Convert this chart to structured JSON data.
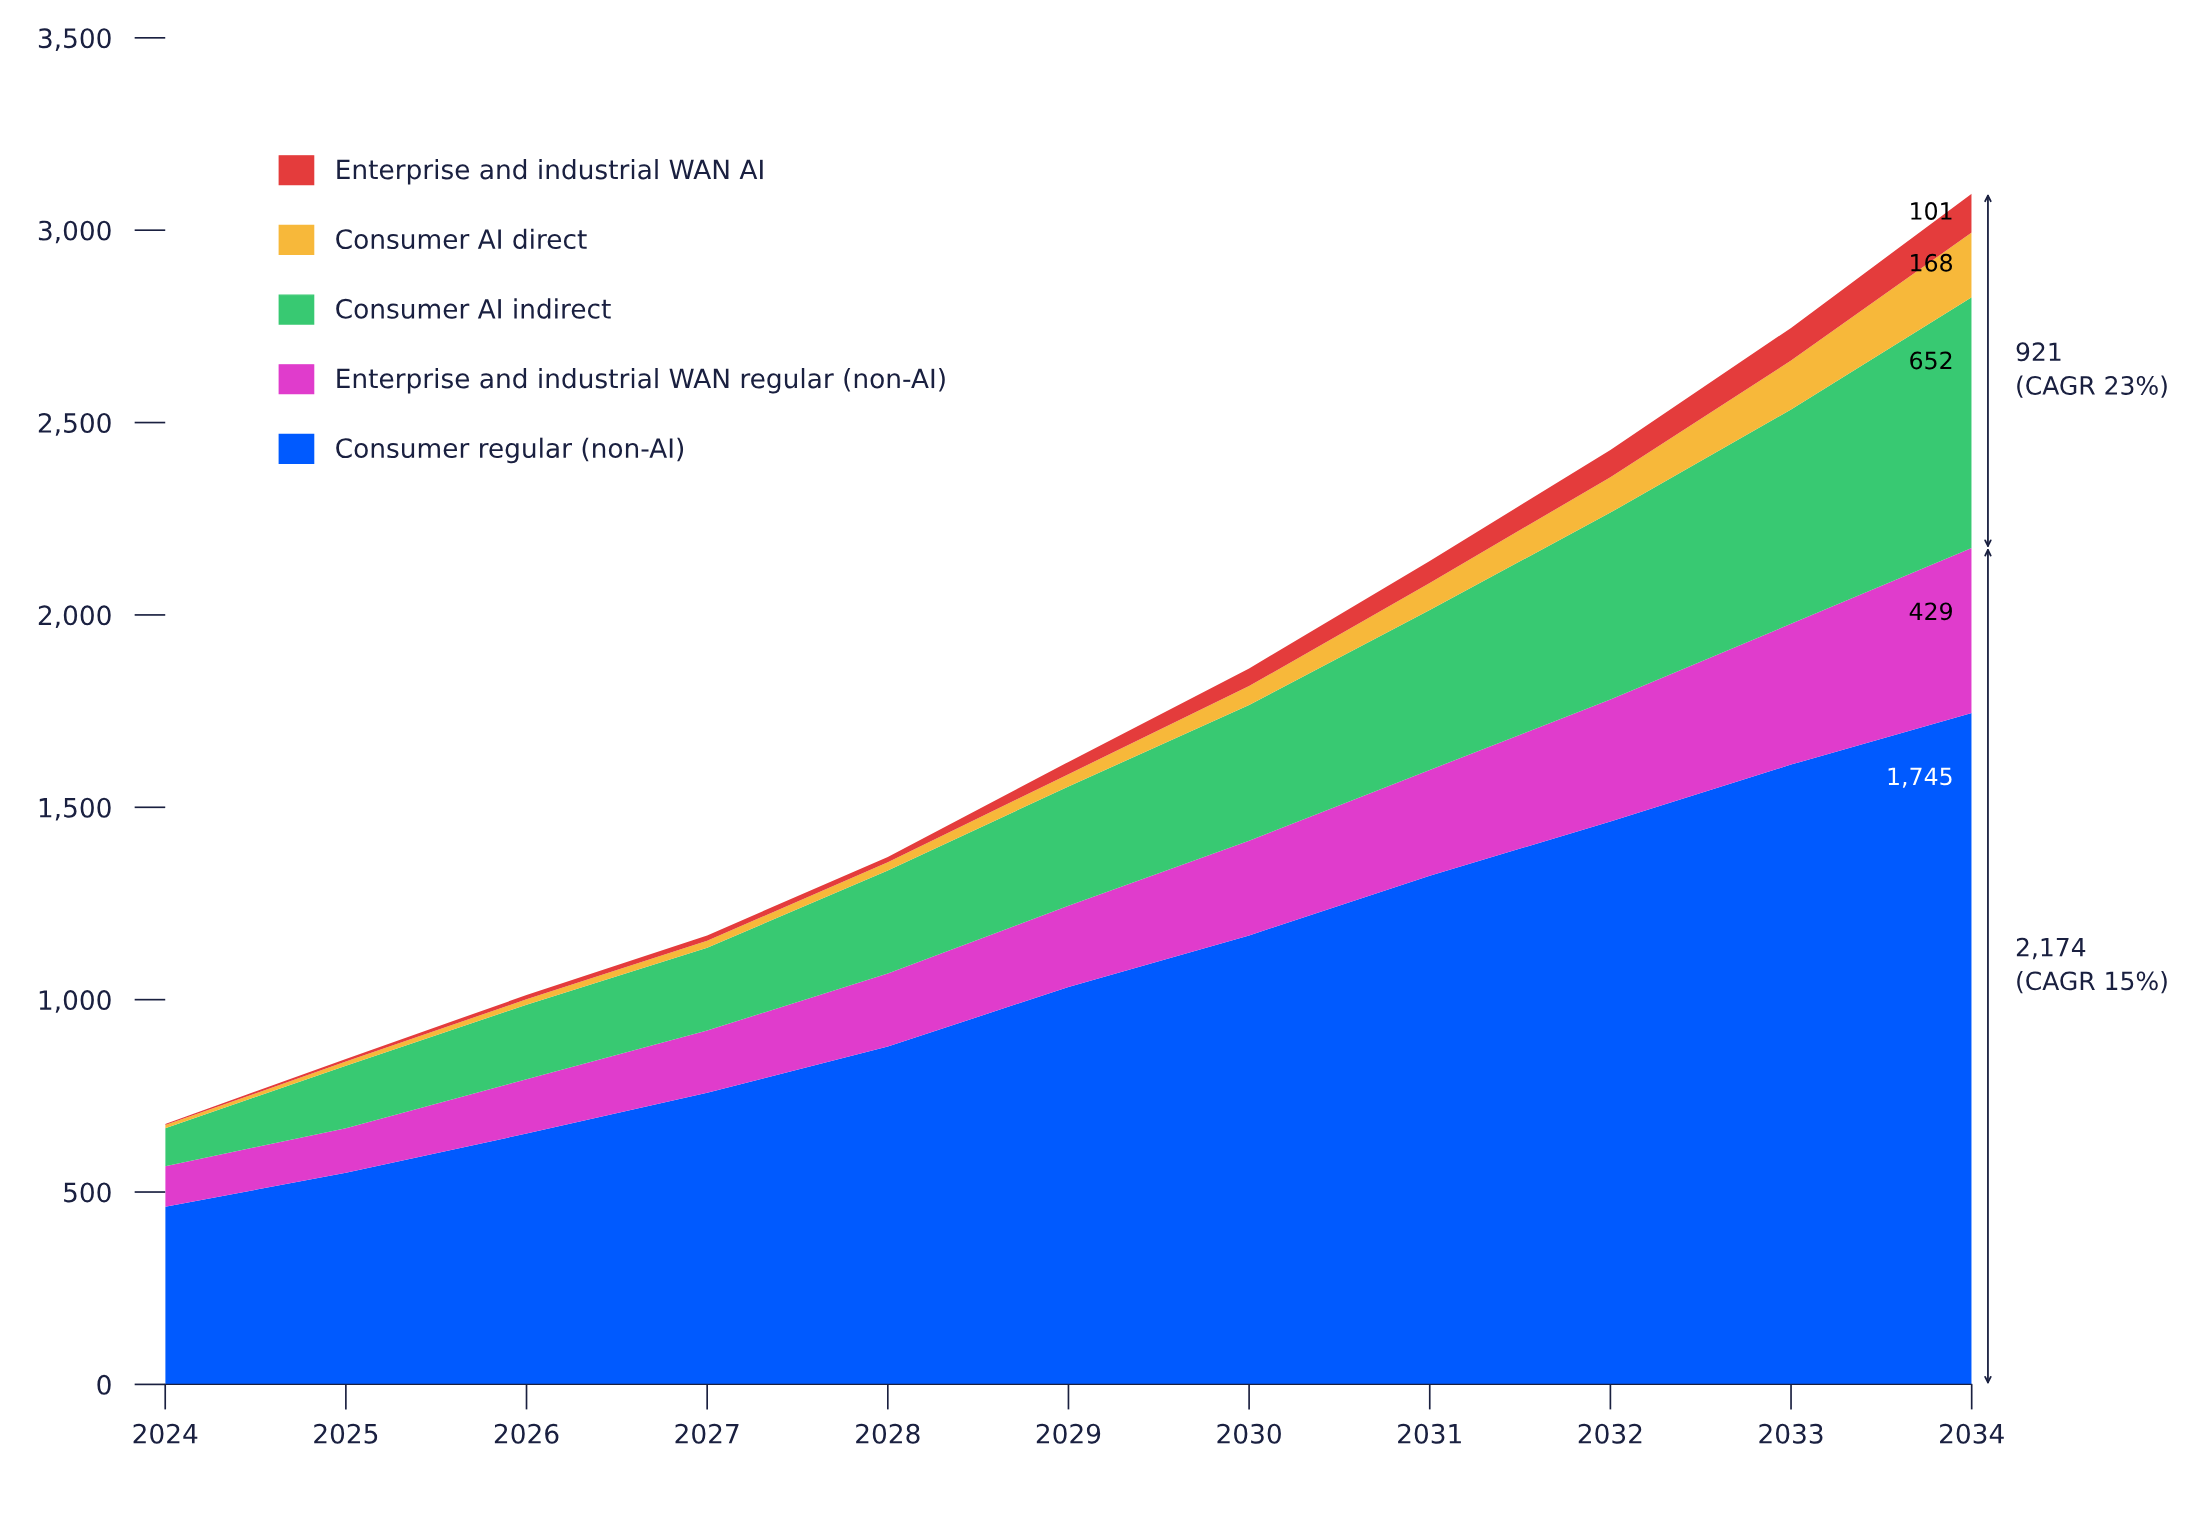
{
  "chart_data": {
    "type": "area",
    "stacked": true,
    "x": [
      2024,
      2025,
      2026,
      2027,
      2028,
      2029,
      2030,
      2031,
      2032,
      2033,
      2034
    ],
    "series": [
      {
        "name": "Consumer regular (non-AI)",
        "color": "#005aff",
        "values": [
          462,
          550,
          652,
          758,
          878,
          1033,
          1167,
          1322,
          1463,
          1611,
          1745
        ],
        "value_labels": [
          null,
          null,
          null,
          null,
          null,
          null,
          null,
          null,
          null,
          null,
          "1,745"
        ]
      },
      {
        "name": "Enterprise and industrial WAN regular (non-AI)",
        "color": "#e03ccc",
        "values": [
          105,
          116,
          141,
          162,
          190,
          211,
          246,
          275,
          317,
          366,
          429
        ],
        "value_labels": [
          null,
          null,
          null,
          null,
          null,
          null,
          null,
          null,
          null,
          null,
          "429"
        ]
      },
      {
        "name": "Consumer AI indirect",
        "color": "#38c972",
        "values": [
          99,
          162,
          194,
          215,
          268,
          310,
          353,
          416,
          486,
          557,
          652
        ],
        "value_labels": [
          null,
          null,
          null,
          null,
          null,
          null,
          null,
          null,
          null,
          null,
          "652"
        ]
      },
      {
        "name": "Consumer AI direct",
        "color": "#f7b83a",
        "values": [
          8,
          11,
          14,
          18,
          21,
          32,
          49,
          70,
          92,
          127,
          168
        ],
        "value_labels": [
          null,
          null,
          null,
          null,
          null,
          null,
          null,
          null,
          null,
          null,
          "168"
        ]
      },
      {
        "name": "Enterprise and industrial WAN AI",
        "color": "#e43c3c",
        "values": [
          3,
          7,
          11,
          14,
          14,
          32,
          46,
          57,
          71,
          85,
          101
        ],
        "value_labels": [
          null,
          null,
          null,
          null,
          null,
          null,
          null,
          null,
          null,
          null,
          "101"
        ]
      }
    ],
    "xlim": [
      2024,
      2034
    ],
    "xticks": [
      2024,
      2025,
      2026,
      2027,
      2028,
      2029,
      2030,
      2031,
      2032,
      2033,
      2034
    ],
    "ylim": [
      0,
      3500
    ],
    "yticks": [
      {
        "value": 0,
        "label": "0"
      },
      {
        "value": 500,
        "label": "500"
      },
      {
        "value": 1000,
        "label": "1,000"
      },
      {
        "value": 1500,
        "label": "1,500"
      },
      {
        "value": 2000,
        "label": "2,000"
      },
      {
        "value": 2500,
        "label": "2,500"
      },
      {
        "value": 3000,
        "label": "3,000"
      },
      {
        "value": 3500,
        "label": "3,500"
      }
    ],
    "annotations": [
      {
        "text": "2,174\n(CAGR 15%)",
        "x": 2034,
        "y": 1087
      },
      {
        "text": "921\n(CAGR 23%)",
        "x": 2034,
        "y": 2634.5
      }
    ],
    "legend": "top left",
    "grid": false
  }
}
